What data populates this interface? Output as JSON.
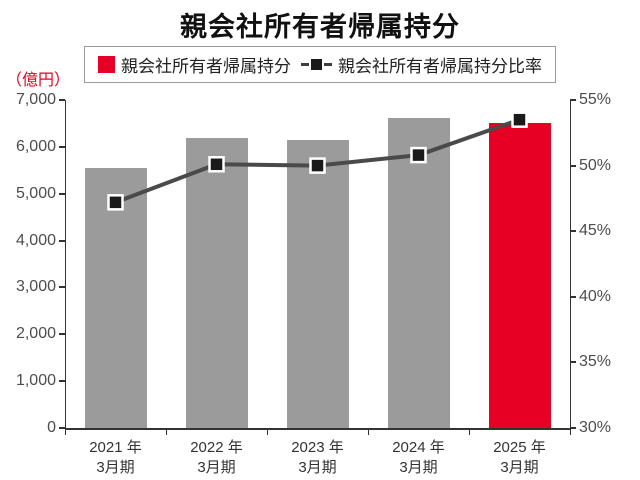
{
  "title": "親会社所有者帰属持分",
  "legend": {
    "bar_label": "親会社所有者帰属持分",
    "line_label": "親会社所有者帰属持分比率"
  },
  "axis_unit_label": "（億円）",
  "colors": {
    "bar": "#9b9b9b",
    "bar_highlight": "#e60023",
    "line": "#4a4a4a",
    "marker": "#1a1a1a",
    "marker_border": "#ffffff",
    "unit_text": "#e60023",
    "axis_text": "#4d4d4d"
  },
  "chart_data": {
    "type": "bar-line-combo",
    "title": "親会社所有者帰属持分",
    "categories": [
      {
        "line1": "2021 年",
        "line2": "3月期"
      },
      {
        "line1": "2022 年",
        "line2": "3月期"
      },
      {
        "line1": "2023 年",
        "line2": "3月期"
      },
      {
        "line1": "2024 年",
        "line2": "3月期"
      },
      {
        "line1": "2025 年",
        "line2": "3月期"
      }
    ],
    "bar_series": {
      "name": "親会社所有者帰属持分",
      "unit": "億円",
      "values": [
        5550,
        6190,
        6150,
        6615,
        6510
      ],
      "highlight_index": 4
    },
    "line_series": {
      "name": "親会社所有者帰属持分比率",
      "unit": "%",
      "values": [
        47.2,
        50.1,
        50.0,
        50.8,
        53.5
      ]
    },
    "left_axis": {
      "label": "（億円）",
      "min": 0,
      "max": 7000,
      "step": 1000
    },
    "right_axis": {
      "min": 30,
      "max": 55,
      "step": 5,
      "suffix": "%"
    },
    "grid": false,
    "legend_position": "top"
  }
}
